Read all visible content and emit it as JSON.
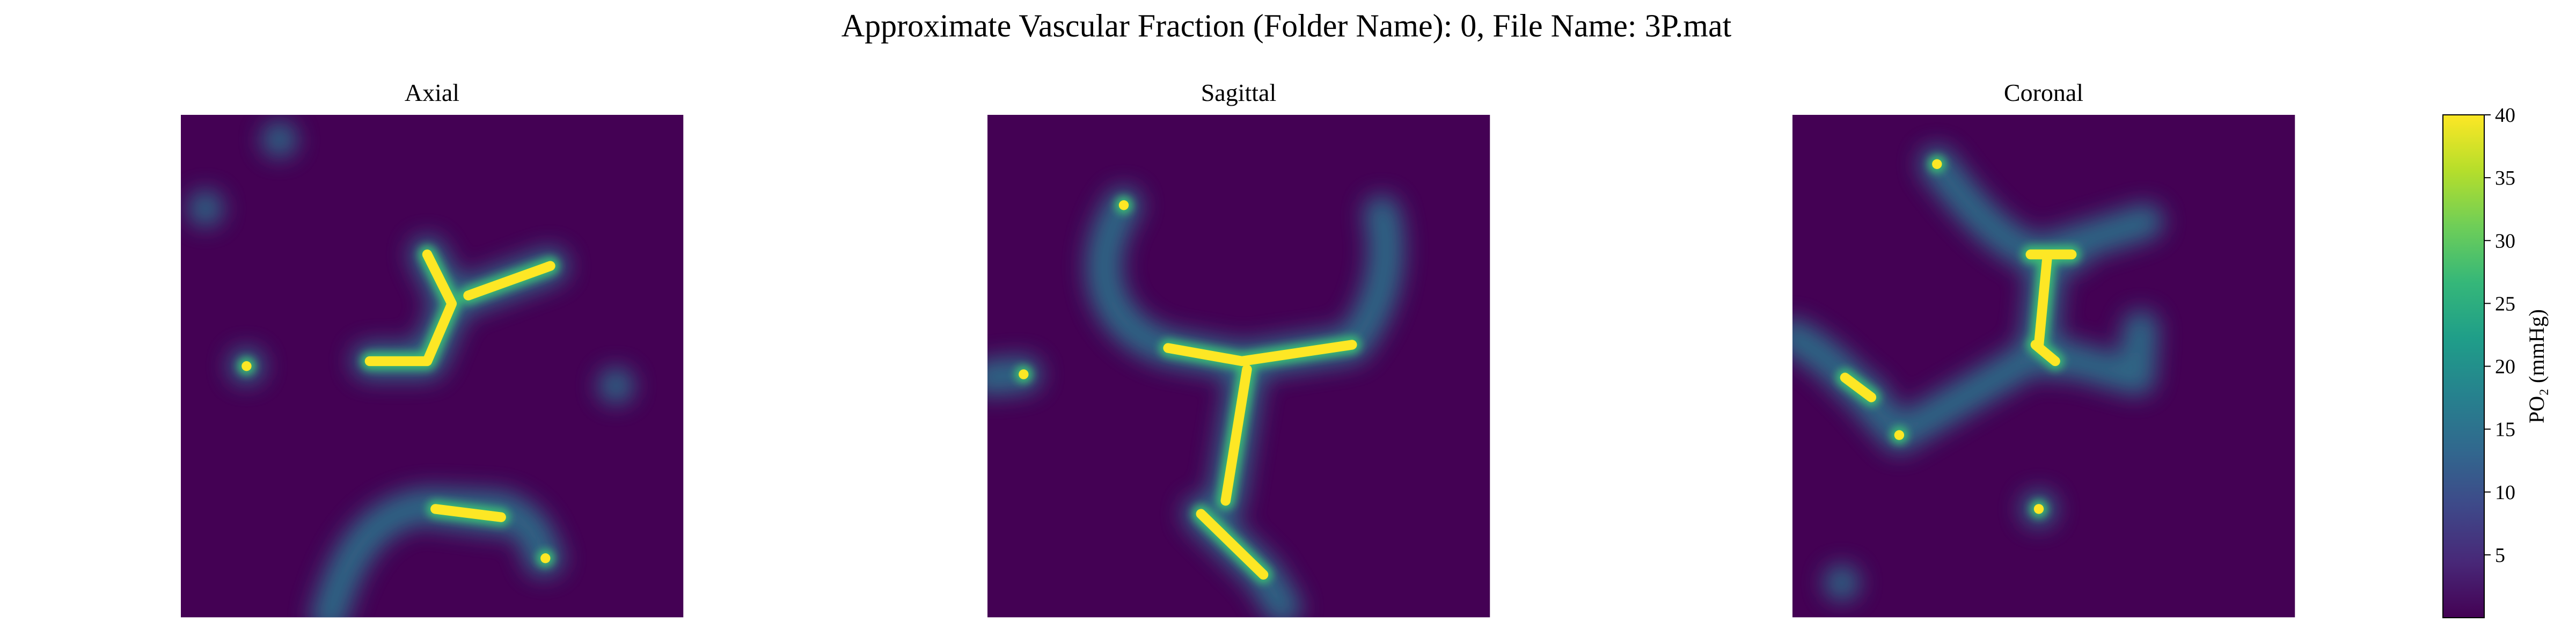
{
  "chart_data": {
    "type": "image",
    "title": "Approximate Vascular Fraction (Folder Name): 0, File Name: 3P.mat",
    "panels": [
      "Axial",
      "Sagittal",
      "Coronal"
    ],
    "colormap": "viridis",
    "colorbar": {
      "label": "PO₂ (mmHg)",
      "ylim": [
        0,
        40
      ],
      "yticks": [
        5,
        10,
        15,
        20,
        25,
        30,
        35,
        40
      ]
    }
  }
}
